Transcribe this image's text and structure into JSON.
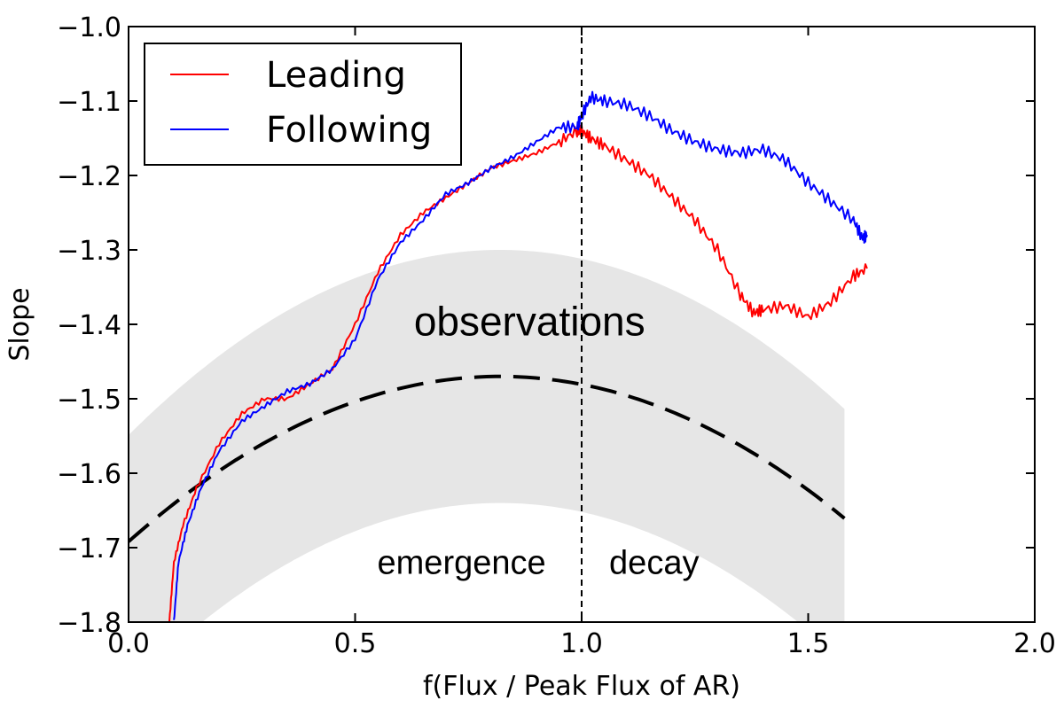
{
  "chart_data": {
    "type": "line",
    "title": "",
    "xlabel": "f(Flux / Peak Flux of AR)",
    "ylabel": "Slope",
    "xlim": [
      0.0,
      2.0
    ],
    "ylim": [
      -1.8,
      -1.0
    ],
    "xticks": [
      {
        "value": 0.0,
        "label": "0.0"
      },
      {
        "value": 0.5,
        "label": "0.5"
      },
      {
        "value": 1.0,
        "label": "1.0"
      },
      {
        "value": 1.5,
        "label": "1.5"
      },
      {
        "value": 2.0,
        "label": "2.0"
      }
    ],
    "yticks": [
      {
        "value": -1.0,
        "label": "−1.0"
      },
      {
        "value": -1.1,
        "label": "−1.1"
      },
      {
        "value": -1.2,
        "label": "−1.2"
      },
      {
        "value": -1.3,
        "label": "−1.3"
      },
      {
        "value": -1.4,
        "label": "−1.4"
      },
      {
        "value": -1.5,
        "label": "−1.5"
      },
      {
        "value": -1.6,
        "label": "−1.6"
      },
      {
        "value": -1.7,
        "label": "−1.7"
      },
      {
        "value": -1.8,
        "label": "−1.8"
      }
    ],
    "grid": false,
    "legend_position": "top-left",
    "series": [
      {
        "name": "Leading",
        "color": "#ff0000",
        "points": [
          [
            0.09,
            -1.8
          ],
          [
            0.1,
            -1.72
          ],
          [
            0.12,
            -1.67
          ],
          [
            0.15,
            -1.62
          ],
          [
            0.2,
            -1.56
          ],
          [
            0.25,
            -1.52
          ],
          [
            0.3,
            -1.5
          ],
          [
            0.35,
            -1.5
          ],
          [
            0.4,
            -1.48
          ],
          [
            0.45,
            -1.46
          ],
          [
            0.5,
            -1.4
          ],
          [
            0.55,
            -1.33
          ],
          [
            0.6,
            -1.28
          ],
          [
            0.65,
            -1.25
          ],
          [
            0.7,
            -1.23
          ],
          [
            0.75,
            -1.21
          ],
          [
            0.8,
            -1.19
          ],
          [
            0.85,
            -1.18
          ],
          [
            0.9,
            -1.17
          ],
          [
            0.95,
            -1.155
          ],
          [
            0.99,
            -1.14
          ],
          [
            1.0,
            -1.14
          ],
          [
            1.02,
            -1.15
          ],
          [
            1.05,
            -1.16
          ],
          [
            1.1,
            -1.18
          ],
          [
            1.15,
            -1.2
          ],
          [
            1.2,
            -1.23
          ],
          [
            1.25,
            -1.26
          ],
          [
            1.3,
            -1.3
          ],
          [
            1.35,
            -1.36
          ],
          [
            1.38,
            -1.385
          ],
          [
            1.4,
            -1.38
          ],
          [
            1.45,
            -1.375
          ],
          [
            1.5,
            -1.39
          ],
          [
            1.55,
            -1.37
          ],
          [
            1.6,
            -1.335
          ],
          [
            1.63,
            -1.325
          ]
        ]
      },
      {
        "name": "Following",
        "color": "#0000ff",
        "points": [
          [
            0.1,
            -1.8
          ],
          [
            0.11,
            -1.72
          ],
          [
            0.13,
            -1.67
          ],
          [
            0.16,
            -1.62
          ],
          [
            0.2,
            -1.57
          ],
          [
            0.25,
            -1.53
          ],
          [
            0.3,
            -1.51
          ],
          [
            0.35,
            -1.49
          ],
          [
            0.4,
            -1.48
          ],
          [
            0.45,
            -1.46
          ],
          [
            0.5,
            -1.42
          ],
          [
            0.55,
            -1.34
          ],
          [
            0.6,
            -1.29
          ],
          [
            0.65,
            -1.26
          ],
          [
            0.7,
            -1.225
          ],
          [
            0.75,
            -1.21
          ],
          [
            0.8,
            -1.19
          ],
          [
            0.85,
            -1.175
          ],
          [
            0.9,
            -1.155
          ],
          [
            0.95,
            -1.135
          ],
          [
            0.99,
            -1.135
          ],
          [
            1.0,
            -1.12
          ],
          [
            1.02,
            -1.095
          ],
          [
            1.05,
            -1.1
          ],
          [
            1.1,
            -1.105
          ],
          [
            1.15,
            -1.12
          ],
          [
            1.2,
            -1.14
          ],
          [
            1.25,
            -1.155
          ],
          [
            1.3,
            -1.165
          ],
          [
            1.35,
            -1.17
          ],
          [
            1.4,
            -1.165
          ],
          [
            1.45,
            -1.18
          ],
          [
            1.5,
            -1.21
          ],
          [
            1.55,
            -1.235
          ],
          [
            1.6,
            -1.26
          ],
          [
            1.62,
            -1.285
          ],
          [
            1.63,
            -1.28
          ]
        ]
      }
    ],
    "observations_band": {
      "label": "observations",
      "color": "#e6e6e6",
      "center": {
        "amplitude": -1.47,
        "peak_x": 0.82,
        "curvature": -0.37
      },
      "half_width": 0.17,
      "x_range": [
        0.0,
        1.58
      ]
    },
    "model_curve": {
      "style": "dashed",
      "color": "#000000",
      "peak_x": 0.82,
      "peak_y": -1.47,
      "curvature": -0.33,
      "x_range": [
        0.0,
        1.58
      ]
    },
    "peak_line": {
      "x": 1.0,
      "style": "dashed",
      "color": "#000000"
    },
    "annotations": {
      "observations": "observations",
      "emergence": "emergence",
      "decay": "decay"
    }
  }
}
